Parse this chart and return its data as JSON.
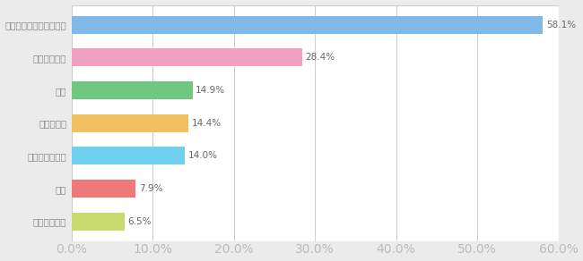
{
  "categories": [
    "クリーニング",
    "生花",
    "教育コンテンツ",
    "家具・家電",
    "洋服",
    "食材・お菓子",
    "音楽・動画配信サービス"
  ],
  "values": [
    6.5,
    7.9,
    14.0,
    14.4,
    14.9,
    28.4,
    58.1
  ],
  "colors": [
    "#c8d96e",
    "#f07878",
    "#70d0f0",
    "#f0c060",
    "#70c880",
    "#f0a0c0",
    "#80b8e8"
  ],
  "labels": [
    "6.5%",
    "7.9%",
    "14.0%",
    "14.4%",
    "14.9%",
    "28.4%",
    "58.1%"
  ],
  "xlim": [
    0,
    60
  ],
  "xtick_values": [
    0,
    10,
    20,
    30,
    40,
    50,
    60
  ],
  "xtick_labels": [
    "0.0%",
    "10.0%",
    "20.0%",
    "30.0%",
    "40.0%",
    "50.0%",
    "60.0%"
  ],
  "background_color": "#ebebeb",
  "bar_background_color": "#ffffff",
  "grid_color": "#cccccc",
  "label_fontsize": 7.5,
  "tick_fontsize": 7.5,
  "ytick_fontsize": 7.5,
  "bar_height": 0.55
}
